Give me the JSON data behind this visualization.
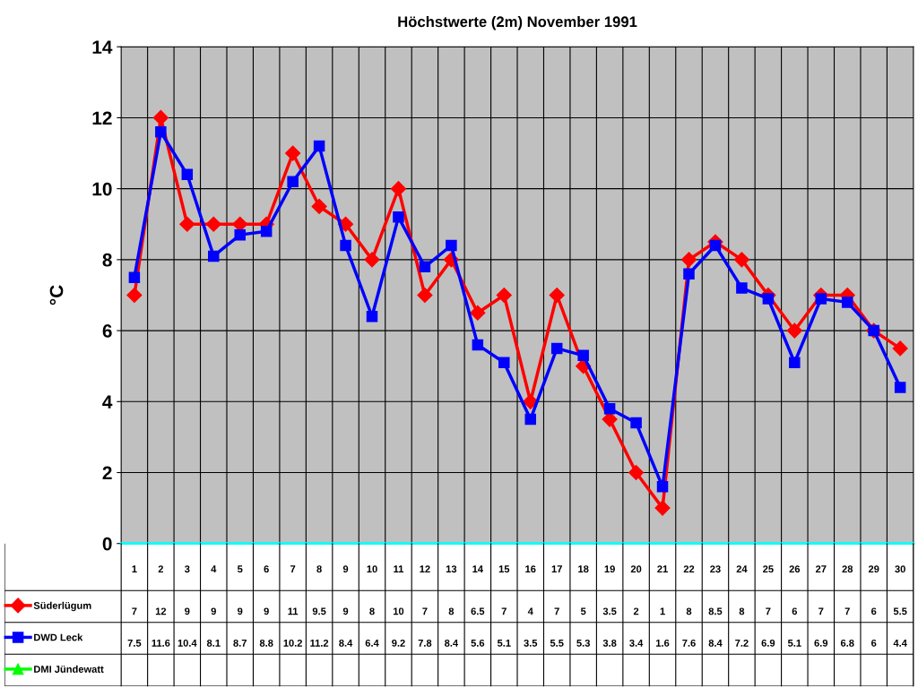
{
  "chart_data": {
    "type": "line",
    "title": "Höchstwerte (2m) November 1991",
    "ylabel": "°C",
    "categories": [
      "1",
      "2",
      "3",
      "4",
      "5",
      "6",
      "7",
      "8",
      "9",
      "10",
      "11",
      "12",
      "13",
      "14",
      "15",
      "16",
      "17",
      "18",
      "19",
      "20",
      "21",
      "22",
      "23",
      "24",
      "25",
      "26",
      "27",
      "28",
      "29",
      "30"
    ],
    "series": [
      {
        "name": "Süderlügum",
        "color": "#ff0000",
        "marker": "diamond",
        "values": [
          7,
          12,
          9,
          9,
          9,
          9,
          11,
          9.5,
          9,
          8,
          10,
          7,
          8,
          6.5,
          7,
          4,
          7,
          5,
          3.5,
          2,
          1,
          8,
          8.5,
          8,
          7,
          6,
          7,
          7,
          6,
          5.5
        ]
      },
      {
        "name": "DWD Leck",
        "color": "#0000ff",
        "marker": "square",
        "values": [
          7.5,
          11.6,
          10.4,
          8.1,
          8.7,
          8.8,
          10.2,
          11.2,
          8.4,
          6.4,
          9.2,
          7.8,
          8.4,
          5.6,
          5.1,
          3.5,
          5.5,
          5.3,
          3.8,
          3.4,
          1.6,
          7.6,
          8.4,
          7.2,
          6.9,
          5.1,
          6.9,
          6.8,
          6,
          4.4
        ]
      },
      {
        "name": "DMI Jündewatt",
        "color": "#00ff00",
        "marker": "triangle",
        "values": [
          null,
          null,
          null,
          null,
          null,
          null,
          null,
          null,
          null,
          null,
          null,
          null,
          null,
          null,
          null,
          null,
          null,
          null,
          null,
          null,
          null,
          null,
          null,
          null,
          null,
          null,
          null,
          null,
          null,
          null
        ]
      }
    ],
    "ylim": [
      0,
      14
    ],
    "yticks": [
      0,
      2,
      4,
      6,
      8,
      10,
      12,
      14
    ],
    "grid": true,
    "legend": "bottom",
    "data_labels": true,
    "line_style": "solid"
  }
}
